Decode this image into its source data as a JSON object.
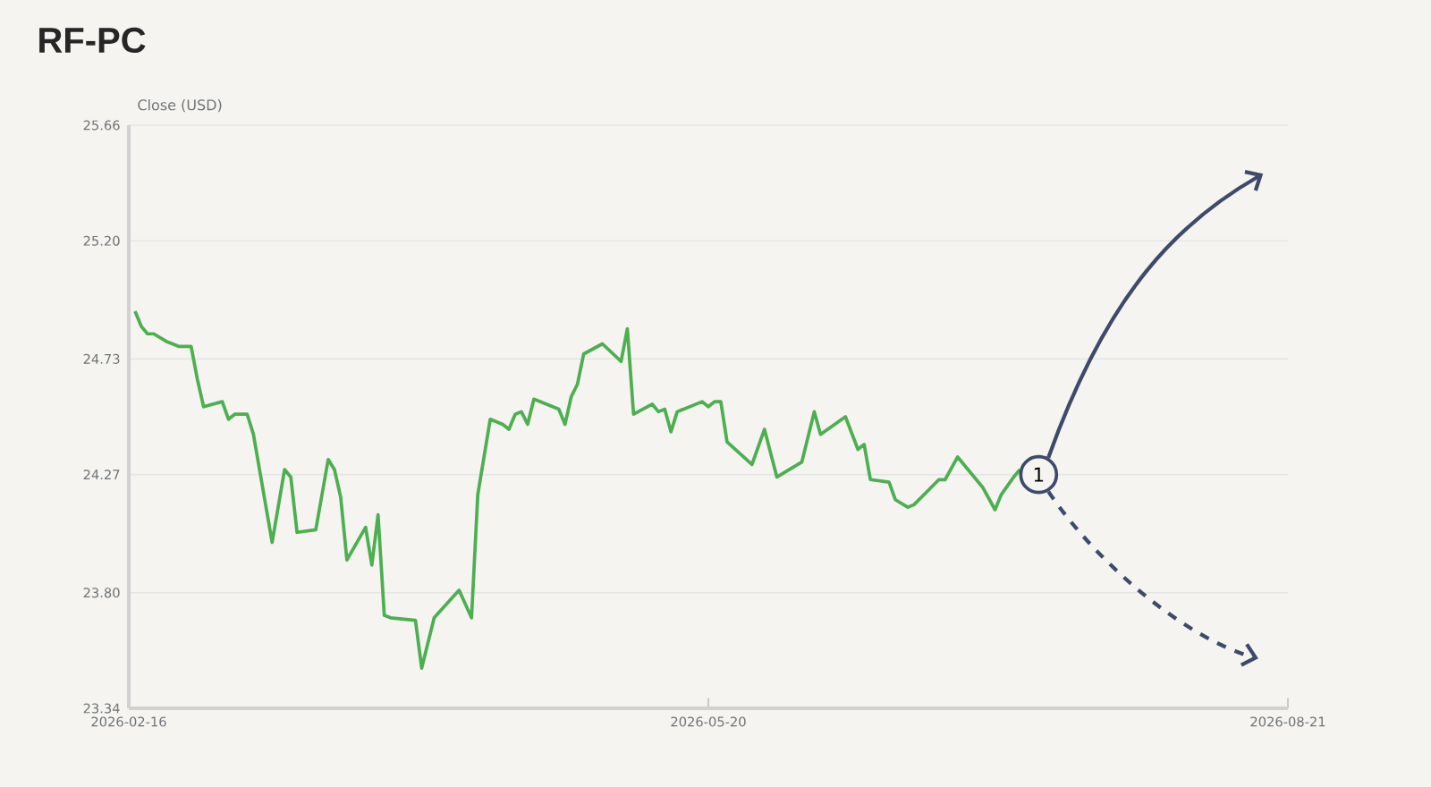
{
  "chart_data": {
    "type": "line",
    "title": "RF-PC",
    "ylabel": "Close (USD)",
    "color": "#4caf50",
    "x": [
      "2026-02-17",
      "2026-02-18",
      "2026-02-19",
      "2026-02-20",
      "2026-02-22",
      "2026-02-24",
      "2026-02-26",
      "2026-02-27",
      "2026-02-28",
      "2026-03-03",
      "2026-03-04",
      "2026-03-05",
      "2026-03-07",
      "2026-03-08",
      "2026-03-11",
      "2026-03-13",
      "2026-03-14",
      "2026-03-15",
      "2026-03-18",
      "2026-03-20",
      "2026-03-21",
      "2026-03-22",
      "2026-03-23",
      "2026-03-26",
      "2026-03-27",
      "2026-03-28",
      "2026-03-29",
      "2026-03-30",
      "2026-04-03",
      "2026-04-04",
      "2026-04-06",
      "2026-04-10",
      "2026-04-12",
      "2026-04-13",
      "2026-04-15",
      "2026-04-17",
      "2026-04-18",
      "2026-04-19",
      "2026-04-20",
      "2026-04-21",
      "2026-04-22",
      "2026-04-26",
      "2026-04-27",
      "2026-04-28",
      "2026-04-29",
      "2026-04-30",
      "2026-05-03",
      "2026-05-06",
      "2026-05-07",
      "2026-05-08",
      "2026-05-11",
      "2026-05-12",
      "2026-05-13",
      "2026-05-14",
      "2026-05-15",
      "2026-05-19",
      "2026-05-20",
      "2026-05-21",
      "2026-05-22",
      "2026-05-23",
      "2026-05-27",
      "2026-05-29",
      "2026-05-31",
      "2026-06-04",
      "2026-06-06",
      "2026-06-07",
      "2026-06-11",
      "2026-06-13",
      "2026-06-14",
      "2026-06-15",
      "2026-06-18",
      "2026-06-19",
      "2026-06-21",
      "2026-06-22",
      "2026-06-26",
      "2026-06-27",
      "2026-06-29",
      "2026-07-03",
      "2026-07-05",
      "2026-07-06",
      "2026-07-08",
      "2026-07-09"
    ],
    "values": [
      24.92,
      24.86,
      24.83,
      24.83,
      24.8,
      24.78,
      24.78,
      24.65,
      24.54,
      24.56,
      24.49,
      24.51,
      24.51,
      24.43,
      24.0,
      24.29,
      24.26,
      24.04,
      24.05,
      24.33,
      24.29,
      24.18,
      23.93,
      24.06,
      23.91,
      24.11,
      23.71,
      23.7,
      23.69,
      23.5,
      23.7,
      23.81,
      23.7,
      24.19,
      24.49,
      24.47,
      24.45,
      24.51,
      24.52,
      24.47,
      24.57,
      24.53,
      24.47,
      24.58,
      24.63,
      24.75,
      24.79,
      24.72,
      24.85,
      24.51,
      24.55,
      24.52,
      24.53,
      24.44,
      24.52,
      24.56,
      24.54,
      24.56,
      24.56,
      24.4,
      24.31,
      24.45,
      24.26,
      24.32,
      24.52,
      24.43,
      24.5,
      24.37,
      24.39,
      24.25,
      24.24,
      24.17,
      24.14,
      24.15,
      24.25,
      24.25,
      24.34,
      24.22,
      24.13,
      24.19,
      24.26,
      24.29
    ],
    "xlim": [
      "2026-02-16",
      "2026-08-21"
    ],
    "ylim": [
      23.34,
      25.66
    ],
    "xticks": [
      "2026-02-16",
      "2026-05-20",
      "2026-08-21"
    ],
    "yticks": [
      23.34,
      {
        "value": 23.8,
        "label": "23.80"
      },
      24.27,
      24.73,
      {
        "value": 25.2,
        "label": "25.20"
      },
      25.66
    ],
    "grid": "y",
    "annotations": [
      {
        "text": "1",
        "x": "2026-07-12",
        "y": 24.27
      }
    ]
  }
}
